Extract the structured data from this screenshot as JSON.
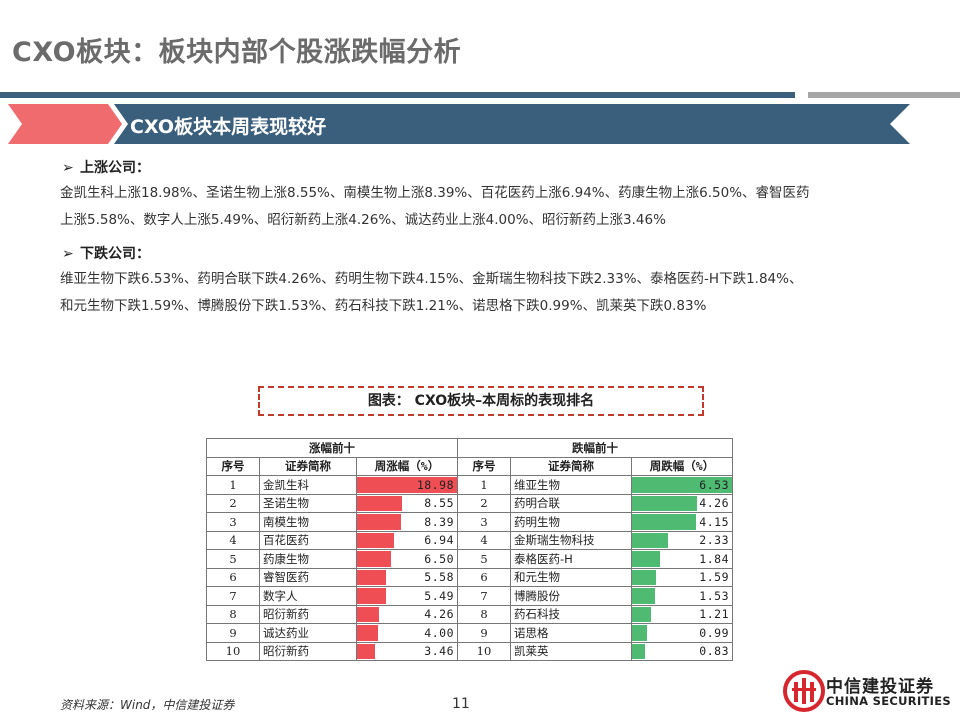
{
  "page_title": "CXO板块：板块内部个股涨跌幅分析",
  "banner_text": "CXO板块本周表现较好",
  "rise": {
    "label": "上涨公司：",
    "line1": "金凯生科上涨18.98%、圣诺生物上涨8.55%、南模生物上涨8.39%、百花医药上涨6.94%、药康生物上涨6.50%、睿智医药",
    "line2": "上涨5.58%、数字人上涨5.49%、昭衍新药上涨4.26%、诚达药业上涨4.00%、昭衍新药上涨3.46%"
  },
  "fall": {
    "label": "下跌公司：",
    "line1": "维亚生物下跌6.53%、药明合联下跌4.26%、药明生物下跌4.15%、金斯瑞生物科技下跌2.33%、泰格医药-H下跌1.84%、",
    "line2": "和元生物下跌1.59%、博腾股份下跌1.53%、药石科技下跌1.21%、诺思格下跌0.99%、凯莱英下跌0.83%"
  },
  "figure_caption": "图表： CXO板块–本周标的表现排名",
  "table": {
    "up_group": "涨幅前十",
    "down_group": "跌幅前十",
    "headers": {
      "no": "序号",
      "name": "证券简称",
      "up_pct": "周涨幅（%）",
      "down_pct": "周跌幅（%）"
    },
    "up_max": 18.98,
    "down_max": 6.53,
    "rows": [
      {
        "no": "1",
        "up_name": "金凯生科",
        "up_value": "18.98",
        "down_no": "1",
        "down_name": "维亚生物",
        "down_value": "6.53"
      },
      {
        "no": "2",
        "up_name": "圣诺生物",
        "up_value": "8.55",
        "down_no": "2",
        "down_name": "药明合联",
        "down_value": "4.26"
      },
      {
        "no": "3",
        "up_name": "南模生物",
        "up_value": "8.39",
        "down_no": "3",
        "down_name": "药明生物",
        "down_value": "4.15"
      },
      {
        "no": "4",
        "up_name": "百花医药",
        "up_value": "6.94",
        "down_no": "4",
        "down_name": "金斯瑞生物科技",
        "down_value": "2.33"
      },
      {
        "no": "5",
        "up_name": "药康生物",
        "up_value": "6.50",
        "down_no": "5",
        "down_name": "泰格医药-H",
        "down_value": "1.84"
      },
      {
        "no": "6",
        "up_name": "睿智医药",
        "up_value": "5.58",
        "down_no": "6",
        "down_name": "和元生物",
        "down_value": "1.59"
      },
      {
        "no": "7",
        "up_name": "数字人",
        "up_value": "5.49",
        "down_no": "7",
        "down_name": "博腾股份",
        "down_value": "1.53"
      },
      {
        "no": "8",
        "up_name": "昭衍新药",
        "up_value": "4.26",
        "down_no": "8",
        "down_name": "药石科技",
        "down_value": "1.21"
      },
      {
        "no": "9",
        "up_name": "诚达药业",
        "up_value": "4.00",
        "down_no": "9",
        "down_name": "诺思格",
        "down_value": "0.99"
      },
      {
        "no": "10",
        "up_name": "昭衍新药",
        "up_value": "3.46",
        "down_no": "10",
        "down_name": "凯莱英",
        "down_value": "0.83"
      }
    ]
  },
  "source": "资料来源：Wind，中信建投证券",
  "page_number": "11",
  "logo": {
    "cn": "中信建投证券",
    "en": "CHINA SECURITIES"
  },
  "colors": {
    "banner": "#3a5f7d",
    "accent_red": "#f04e55",
    "bar_up": "#f04e55",
    "bar_down": "#4fba72"
  }
}
